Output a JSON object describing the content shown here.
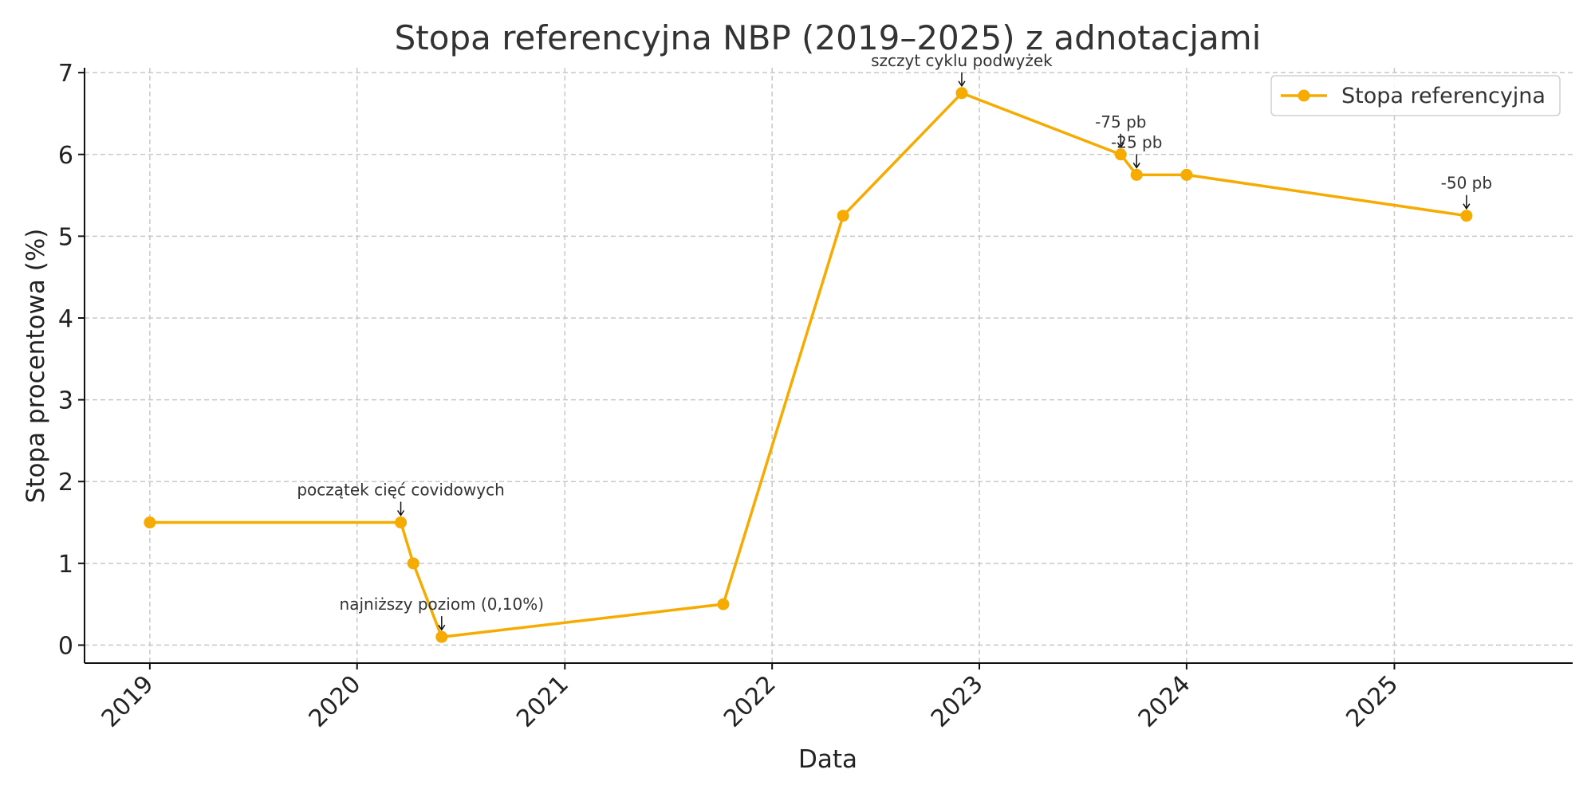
{
  "chart_data": {
    "type": "line",
    "title": "Stopa referencyjna NBP (2019–2025) z adnotacjami",
    "xlabel": "Data",
    "ylabel": "Stopa procentowa (%)",
    "xlim": [
      "2018-09-08",
      "2025-11-11"
    ],
    "ylim": [
      -0.22,
      7.06
    ],
    "x_ticks": [
      "2019",
      "2020",
      "2021",
      "2022",
      "2023",
      "2024",
      "2025"
    ],
    "y_ticks": [
      "0",
      "1",
      "2",
      "3",
      "4",
      "5",
      "6",
      "7"
    ],
    "grid": true,
    "legend": "top-right",
    "color": "#f5ab00",
    "series": [
      {
        "name": "Stopa referencyjna",
        "points": [
          {
            "x": "2019-01-01",
            "y": 1.5
          },
          {
            "x": "2020-03-18",
            "y": 1.5
          },
          {
            "x": "2020-04-09",
            "y": 1.0
          },
          {
            "x": "2020-05-29",
            "y": 0.1
          },
          {
            "x": "2021-10-07",
            "y": 0.5
          },
          {
            "x": "2022-05-06",
            "y": 5.25
          },
          {
            "x": "2022-12-01",
            "y": 6.75
          },
          {
            "x": "2023-09-07",
            "y": 6.0
          },
          {
            "x": "2023-10-05",
            "y": 5.75
          },
          {
            "x": "2024-01-01",
            "y": 5.75
          },
          {
            "x": "2025-05-08",
            "y": 5.25
          }
        ]
      }
    ],
    "annotations": [
      {
        "text": "początek cięć covidowych",
        "x": "2020-03-18",
        "y": 1.5
      },
      {
        "text": "najniższy poziom (0,10%)",
        "x": "2020-05-29",
        "y": 0.1
      },
      {
        "text": "szczyt cyklu podwyżek",
        "x": "2022-12-01",
        "y": 6.75
      },
      {
        "text": "-75 pb",
        "x": "2023-09-07",
        "y": 6.0
      },
      {
        "text": "-25 pb",
        "x": "2023-10-05",
        "y": 5.75
      },
      {
        "text": "-50 pb",
        "x": "2025-05-08",
        "y": 5.25
      }
    ]
  }
}
